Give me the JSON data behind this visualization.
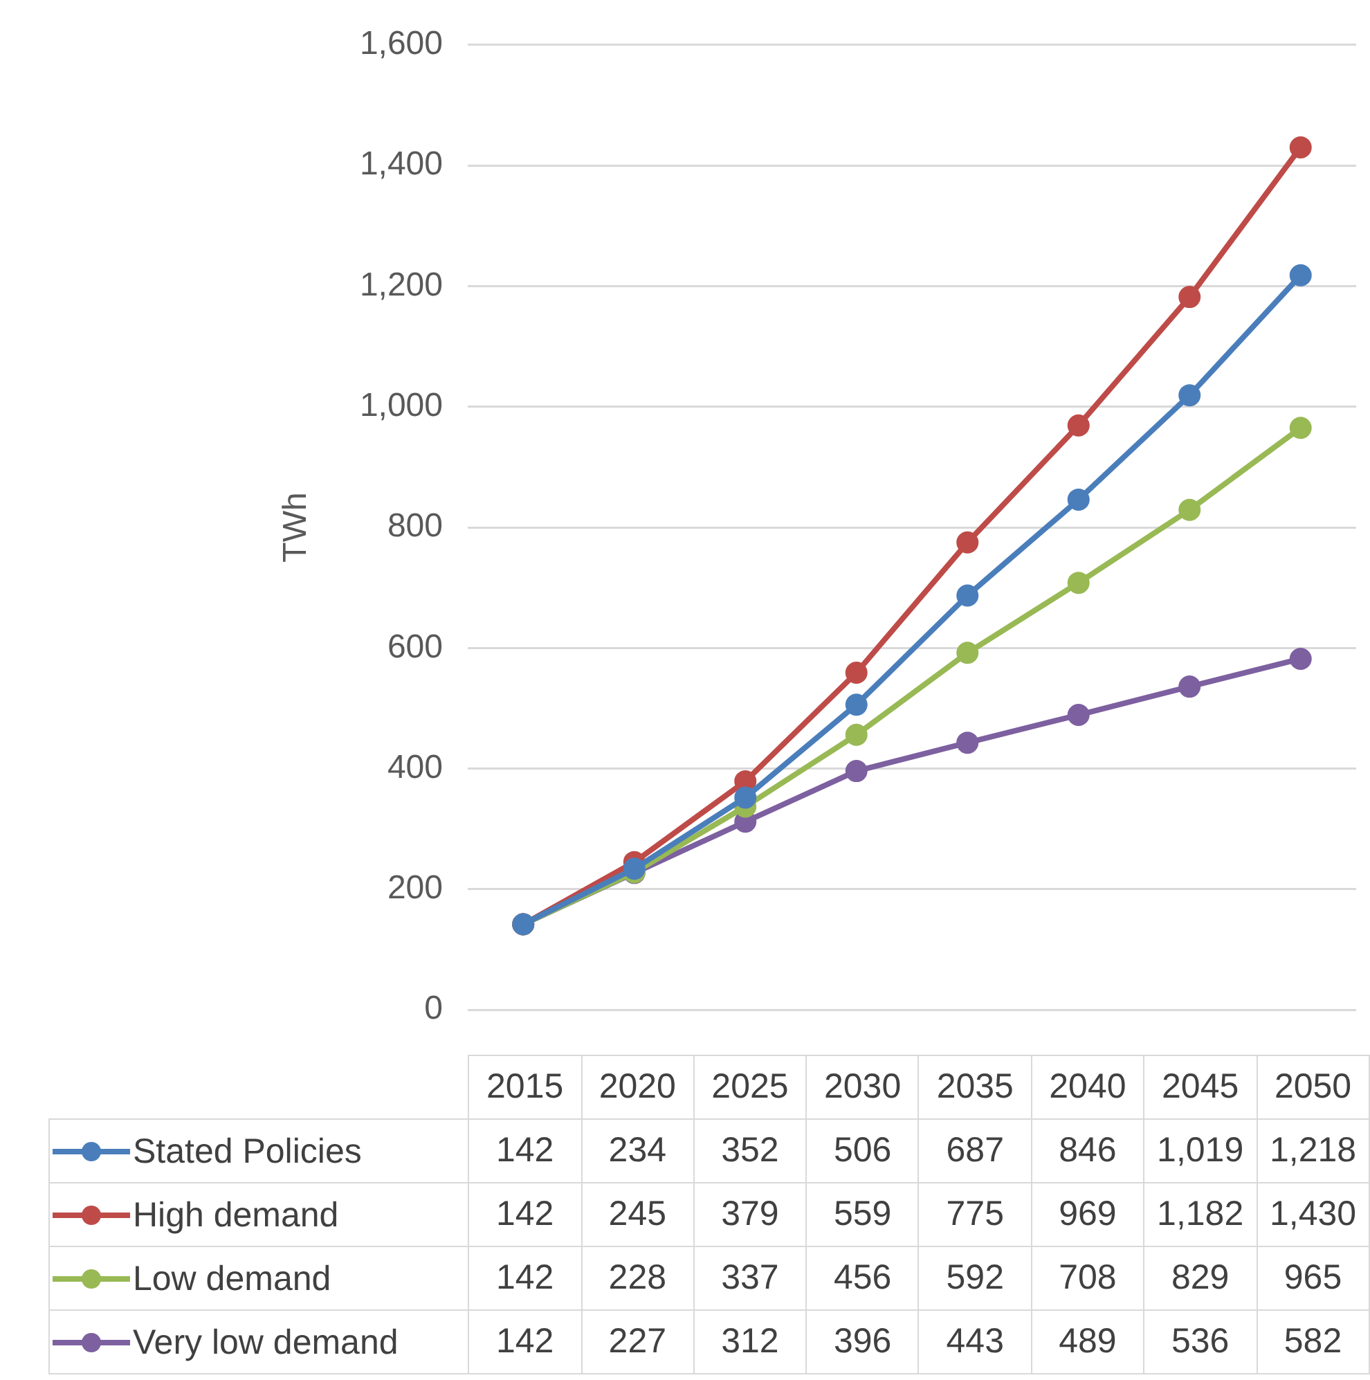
{
  "chart_data": {
    "type": "line",
    "ylabel": "TWh",
    "categories": [
      "2015",
      "2020",
      "2025",
      "2030",
      "2035",
      "2040",
      "2045",
      "2050"
    ],
    "series": [
      {
        "name": "Stated Policies",
        "color": "#4a7ebb",
        "values": [
          142,
          234,
          352,
          506,
          687,
          846,
          1019,
          1218
        ],
        "value_labels": [
          "142",
          "234",
          "352",
          "506",
          "687",
          "846",
          "1,019",
          "1,218"
        ]
      },
      {
        "name": "High demand",
        "color": "#be4b48",
        "values": [
          142,
          245,
          379,
          559,
          775,
          969,
          1182,
          1430
        ],
        "value_labels": [
          "142",
          "245",
          "379",
          "559",
          "775",
          "969",
          "1,182",
          "1,430"
        ]
      },
      {
        "name": "Low demand",
        "color": "#98b954",
        "values": [
          142,
          228,
          337,
          456,
          592,
          708,
          829,
          965
        ],
        "value_labels": [
          "142",
          "228",
          "337",
          "456",
          "592",
          "708",
          "829",
          "965"
        ]
      },
      {
        "name": "Very low demand",
        "color": "#7d60a0",
        "values": [
          142,
          227,
          312,
          396,
          443,
          489,
          536,
          582
        ],
        "value_labels": [
          "142",
          "227",
          "312",
          "396",
          "443",
          "489",
          "536",
          "582"
        ]
      }
    ],
    "ylim": [
      0,
      1600
    ],
    "yticks": [
      0,
      200,
      400,
      600,
      800,
      {
        "value": 1000,
        "label": "1,000"
      },
      {
        "value": 1200,
        "label": "1,200"
      },
      {
        "value": 1400,
        "label": "1,400"
      },
      {
        "value": 1600,
        "label": "1,600"
      }
    ],
    "grid": "y",
    "legend": "bottom",
    "marker": "circle",
    "line_style": "solid"
  }
}
